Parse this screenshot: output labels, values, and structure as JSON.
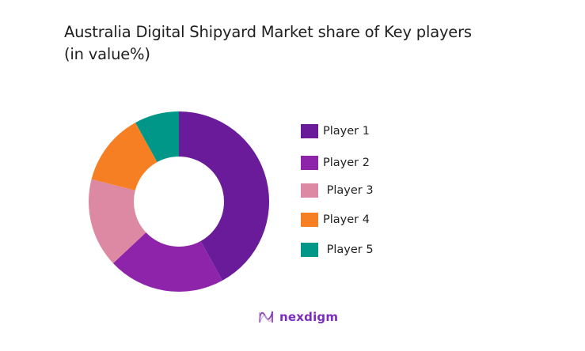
{
  "chart_data": {
    "type": "pie",
    "variant": "donut",
    "title": "Australia Digital Shipyard Market share of Key players",
    "subtitle": "(in value%)",
    "categories": [
      "Player 1",
      "Player 2",
      "Player 3",
      "Player 4",
      "Player 5"
    ],
    "values": [
      42,
      21,
      16,
      13,
      8
    ],
    "colors": [
      "#6a1b9a",
      "#8e24aa",
      "#de89a4",
      "#f57f22",
      "#009688"
    ],
    "legend_position": "right",
    "legend_labels": [
      "Player 1",
      "Player 2",
      " Player 3",
      "Player 4",
      " Player 5"
    ]
  },
  "title": {
    "line1": "Australia Digital Shipyard Market share of Key players",
    "line2": "(in value%)"
  },
  "legend": {
    "items": [
      {
        "label": "Player 1",
        "color": "#6a1b9a"
      },
      {
        "label": "Player 2",
        "color": "#8e24aa"
      },
      {
        "label": " Player 3",
        "color": "#de89a4"
      },
      {
        "label": "Player 4",
        "color": "#f57f22"
      },
      {
        "label": " Player 5",
        "color": "#009688"
      }
    ]
  },
  "logo": {
    "icon": "nexdigm-wave-icon",
    "text": "nexdigm",
    "color": "#7b2cbf"
  }
}
